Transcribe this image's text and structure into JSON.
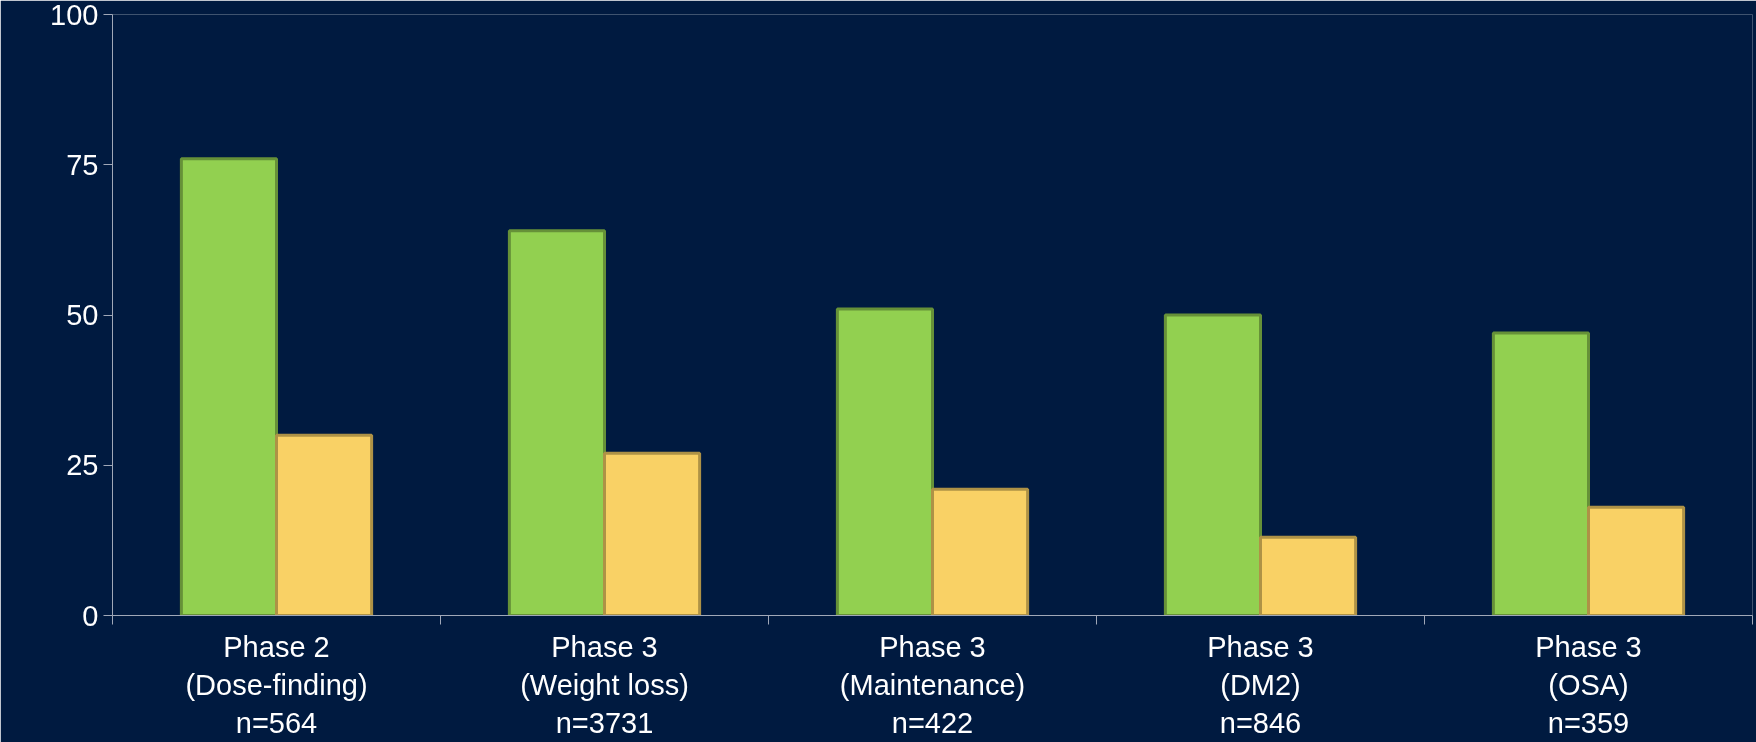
{
  "chart_data": {
    "type": "bar",
    "categories": [
      "Phase 2\n(Dose-finding)\nn=564",
      "Phase 3\n(Weight loss)\nn=3731",
      "Phase 3\n(Maintenance)\nn=422",
      "Phase 3\n(DM2)\nn=846",
      "Phase 3\n(OSA)\nn=359"
    ],
    "series": [
      {
        "color": "#92d050",
        "values": [
          76,
          64,
          51,
          50,
          47
        ]
      },
      {
        "color": "#f9d165",
        "values": [
          30,
          27,
          21,
          13,
          18
        ]
      }
    ],
    "ylim": [
      0,
      100
    ],
    "yticks": [
      0,
      25,
      50,
      75,
      100
    ],
    "grid": false
  }
}
